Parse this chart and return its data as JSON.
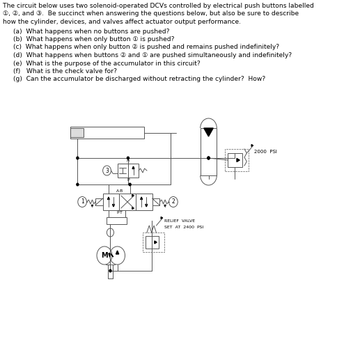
{
  "bg_color": "#ffffff",
  "text_color": "#000000",
  "line_color": "#555555",
  "fig_width": 4.84,
  "fig_height": 4.97,
  "dpi": 100,
  "title_lines": [
    "The circuit below uses two solenoid-operated DCVs controlled by electrical push buttons labelled",
    "①, ②, and ③.  Be succinct when answering the questions below, but also be sure to describe",
    "how the cylinder, devices, and valves affect actuator output performance."
  ],
  "questions": [
    "(a)  What happens when no buttons are pushed?",
    "(b)  What happens when only button ① is pushed?",
    "(c)  What happens when only button ② is pushed and remains pushed indefinitely?",
    "(d)  What happens when buttons ② and ① are pushed simultaneously and indefinitely?",
    "(e)  What is the purpose of the accumulator in this circuit?",
    "(f)   What is the check valve for?",
    "(g)  Can the accumulator be discharged without retracting the cylinder?  How?"
  ],
  "label_2000": "2000  PSI",
  "label_relief_1": "RELIEF  VALVE",
  "label_relief_2": "SET  AT  2400  PSI"
}
